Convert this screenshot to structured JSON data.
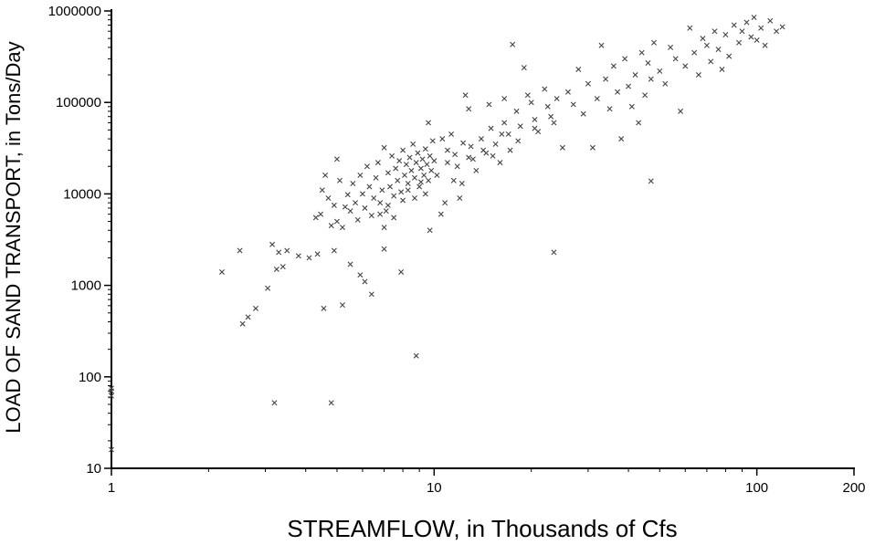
{
  "chart_data": {
    "type": "scatter",
    "title": "",
    "xlabel": "STREAMFLOW, in Thousands of Cfs",
    "ylabel": "LOAD OF SAND TRANSPORT, in Tons/Day",
    "xscale": "log",
    "yscale": "log",
    "xlim": [
      1,
      200
    ],
    "ylim": [
      10,
      1000000
    ],
    "x_ticks": [
      1,
      10,
      100,
      200
    ],
    "x_tick_labels": [
      "1",
      "10",
      "100",
      "200"
    ],
    "y_ticks": [
      10,
      100,
      1000,
      10000,
      100000,
      1000000
    ],
    "y_tick_labels": [
      "10",
      "100",
      "1000",
      "10000",
      "100000",
      "1000000"
    ],
    "grid": false,
    "legend": "none",
    "marker": "x",
    "point_color": "#444444",
    "series": [
      {
        "points": [
          [
            1.0,
            16
          ],
          [
            1.0,
            62
          ],
          [
            1.0,
            70
          ],
          [
            1.0,
            75
          ],
          [
            2.2,
            1400
          ],
          [
            2.5,
            2400
          ],
          [
            2.55,
            380
          ],
          [
            2.65,
            450
          ],
          [
            2.8,
            560
          ],
          [
            3.05,
            930
          ],
          [
            3.15,
            2800
          ],
          [
            3.25,
            1500
          ],
          [
            3.3,
            2300
          ],
          [
            3.4,
            1600
          ],
          [
            3.5,
            2400
          ],
          [
            3.2,
            52
          ],
          [
            3.8,
            2100
          ],
          [
            4.1,
            2000
          ],
          [
            4.35,
            2200
          ],
          [
            4.55,
            560
          ],
          [
            4.8,
            52
          ],
          [
            4.9,
            2400
          ],
          [
            5.2,
            610
          ],
          [
            5.5,
            1700
          ],
          [
            5.9,
            1300
          ],
          [
            6.1,
            1100
          ],
          [
            6.4,
            800
          ],
          [
            7.0,
            2500
          ],
          [
            7.9,
            1400
          ],
          [
            8.8,
            170
          ],
          [
            23.5,
            2300
          ],
          [
            47.0,
            13800
          ],
          [
            4.3,
            5500
          ],
          [
            4.45,
            6000
          ],
          [
            4.5,
            11000
          ],
          [
            4.6,
            16000
          ],
          [
            4.7,
            9000
          ],
          [
            4.8,
            4500
          ],
          [
            4.9,
            7500
          ],
          [
            5.0,
            5000
          ],
          [
            5.0,
            24000
          ],
          [
            5.1,
            14000
          ],
          [
            5.2,
            4300
          ],
          [
            5.3,
            7200
          ],
          [
            5.4,
            9800
          ],
          [
            5.5,
            6500
          ],
          [
            5.6,
            13000
          ],
          [
            5.7,
            8000
          ],
          [
            5.8,
            5200
          ],
          [
            5.9,
            16000
          ],
          [
            6.0,
            10000
          ],
          [
            6.1,
            7000
          ],
          [
            6.2,
            20000
          ],
          [
            6.3,
            12000
          ],
          [
            6.4,
            5800
          ],
          [
            6.5,
            9000
          ],
          [
            6.6,
            15000
          ],
          [
            6.7,
            22000
          ],
          [
            6.8,
            8000
          ],
          [
            6.9,
            11000
          ],
          [
            7.0,
            4300
          ],
          [
            7.0,
            32000
          ],
          [
            7.1,
            6500
          ],
          [
            7.2,
            17000
          ],
          [
            7.3,
            12000
          ],
          [
            7.4,
            26000
          ],
          [
            7.5,
            9500
          ],
          [
            7.6,
            19000
          ],
          [
            7.7,
            14000
          ],
          [
            7.8,
            23000
          ],
          [
            7.9,
            10500
          ],
          [
            8.0,
            30000
          ],
          [
            8.1,
            16000
          ],
          [
            8.2,
            21000
          ],
          [
            8.3,
            13000
          ],
          [
            8.4,
            25000
          ],
          [
            8.5,
            18000
          ],
          [
            8.6,
            35000
          ],
          [
            8.7,
            15000
          ],
          [
            8.8,
            22000
          ],
          [
            8.9,
            28000
          ],
          [
            9.0,
            12000
          ],
          [
            9.1,
            19000
          ],
          [
            9.2,
            24000
          ],
          [
            9.3,
            16000
          ],
          [
            9.4,
            31000
          ],
          [
            9.5,
            21000
          ],
          [
            9.6,
            14000
          ],
          [
            9.7,
            26000
          ],
          [
            9.8,
            18000
          ],
          [
            9.9,
            38000
          ],
          [
            10.0,
            23000
          ],
          [
            6.8,
            6000
          ],
          [
            7.2,
            7500
          ],
          [
            7.5,
            5500
          ],
          [
            8.0,
            8500
          ],
          [
            8.3,
            11000
          ],
          [
            8.7,
            9000
          ],
          [
            9.1,
            13500
          ],
          [
            9.4,
            10000
          ],
          [
            9.7,
            4000
          ],
          [
            10.2,
            16000
          ],
          [
            10.5,
            6000
          ],
          [
            10.8,
            8000
          ],
          [
            11.0,
            30000
          ],
          [
            11.3,
            45000
          ],
          [
            11.5,
            14000
          ],
          [
            11.8,
            20000
          ],
          [
            12.0,
            9000
          ],
          [
            12.2,
            13000
          ],
          [
            12.5,
            120000
          ],
          [
            12.8,
            25000
          ],
          [
            13.0,
            33000
          ],
          [
            13.5,
            18000
          ],
          [
            14.0,
            40000
          ],
          [
            14.5,
            28000
          ],
          [
            15.0,
            52000
          ],
          [
            15.5,
            35000
          ],
          [
            16.0,
            22000
          ],
          [
            16.5,
            60000
          ],
          [
            17.0,
            45000
          ],
          [
            17.2,
            30000
          ],
          [
            17.5,
            430000
          ],
          [
            18.0,
            80000
          ],
          [
            18.5,
            55000
          ],
          [
            19.0,
            240000
          ],
          [
            19.5,
            120000
          ],
          [
            20.0,
            100000
          ],
          [
            20.5,
            65000
          ],
          [
            21.0,
            48000
          ],
          [
            22.0,
            140000
          ],
          [
            22.5,
            90000
          ],
          [
            23.0,
            70000
          ],
          [
            24.0,
            110000
          ],
          [
            25.0,
            32000
          ],
          [
            26.0,
            130000
          ],
          [
            27.0,
            95000
          ],
          [
            28.0,
            230000
          ],
          [
            29.0,
            75000
          ],
          [
            30.0,
            160000
          ],
          [
            31.0,
            32000
          ],
          [
            32.0,
            110000
          ],
          [
            33.0,
            420000
          ],
          [
            34.0,
            180000
          ],
          [
            35.0,
            85000
          ],
          [
            36.0,
            250000
          ],
          [
            37.0,
            130000
          ],
          [
            38.0,
            40000
          ],
          [
            39.0,
            300000
          ],
          [
            40.0,
            150000
          ],
          [
            41.0,
            90000
          ],
          [
            42.0,
            200000
          ],
          [
            43.0,
            60000
          ],
          [
            44.0,
            350000
          ],
          [
            45.0,
            120000
          ],
          [
            46.0,
            270000
          ],
          [
            47.0,
            180000
          ],
          [
            48.0,
            450000
          ],
          [
            50.0,
            220000
          ],
          [
            52.0,
            160000
          ],
          [
            54.0,
            400000
          ],
          [
            56.0,
            300000
          ],
          [
            58.0,
            80000
          ],
          [
            60.0,
            250000
          ],
          [
            62.0,
            650000
          ],
          [
            64.0,
            350000
          ],
          [
            66.0,
            200000
          ],
          [
            68.0,
            500000
          ],
          [
            70.0,
            420000
          ],
          [
            72.0,
            280000
          ],
          [
            74.0,
            600000
          ],
          [
            76.0,
            380000
          ],
          [
            78.0,
            230000
          ],
          [
            80.0,
            550000
          ],
          [
            82.0,
            320000
          ],
          [
            85.0,
            700000
          ],
          [
            88.0,
            450000
          ],
          [
            90.0,
            600000
          ],
          [
            93.0,
            750000
          ],
          [
            96.0,
            520000
          ],
          [
            98.0,
            850000
          ],
          [
            100.0,
            480000
          ],
          [
            103.0,
            650000
          ],
          [
            106.0,
            420000
          ],
          [
            110.0,
            780000
          ],
          [
            115.0,
            600000
          ],
          [
            120.0,
            670000
          ],
          [
            11.0,
            22000
          ],
          [
            11.6,
            27000
          ],
          [
            12.3,
            36000
          ],
          [
            13.2,
            24000
          ],
          [
            14.2,
            30000
          ],
          [
            15.2,
            26000
          ],
          [
            16.2,
            45000
          ],
          [
            18.2,
            38000
          ],
          [
            20.5,
            52000
          ],
          [
            23.5,
            60000
          ],
          [
            9.6,
            60000
          ],
          [
            12.8,
            85000
          ],
          [
            14.8,
            95000
          ],
          [
            16.5,
            110000
          ],
          [
            10.6,
            40000
          ]
        ]
      }
    ]
  }
}
